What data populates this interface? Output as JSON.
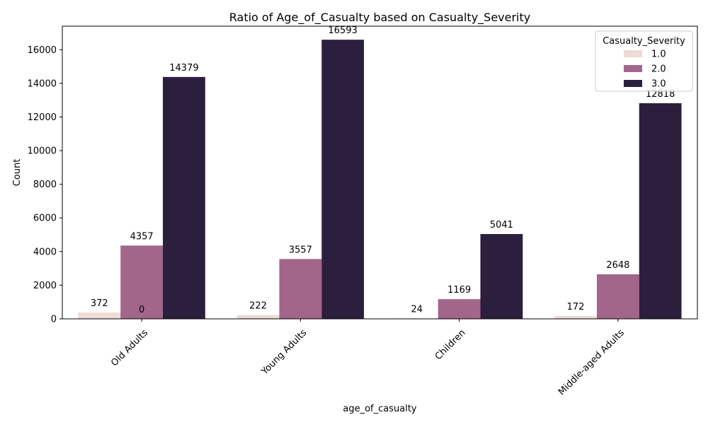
{
  "chart_data": {
    "type": "bar",
    "title": "Ratio of Age_of_Casualty based on Casualty_Severity",
    "xlabel": "age_of_casualty",
    "ylabel": "Count",
    "categories": [
      "Old Adults",
      "Young Adults",
      "Children",
      "Middle-aged Adults"
    ],
    "series": [
      {
        "name": "1.0",
        "color": "#eddbd5",
        "values": [
          372,
          222,
          24,
          172
        ]
      },
      {
        "name": "2.0",
        "color": "#a2668b",
        "values": [
          4357,
          3557,
          1169,
          2648
        ]
      },
      {
        "name": "3.0",
        "color": "#2c1e3d",
        "values": [
          14379,
          16593,
          5041,
          12818
        ]
      }
    ],
    "extra_labels": [
      {
        "category_index": 0,
        "text": "0"
      }
    ],
    "ylim": [
      0,
      17400
    ],
    "yticks": [
      0,
      2000,
      4000,
      6000,
      8000,
      10000,
      12000,
      14000,
      16000
    ],
    "ytick_labels": [
      "0",
      "2000",
      "4000",
      "6000",
      "8000",
      "10000",
      "12000",
      "14000",
      "16000"
    ],
    "legend": {
      "title": "Casualty_Severity",
      "position": "top-right"
    },
    "grid": false
  }
}
